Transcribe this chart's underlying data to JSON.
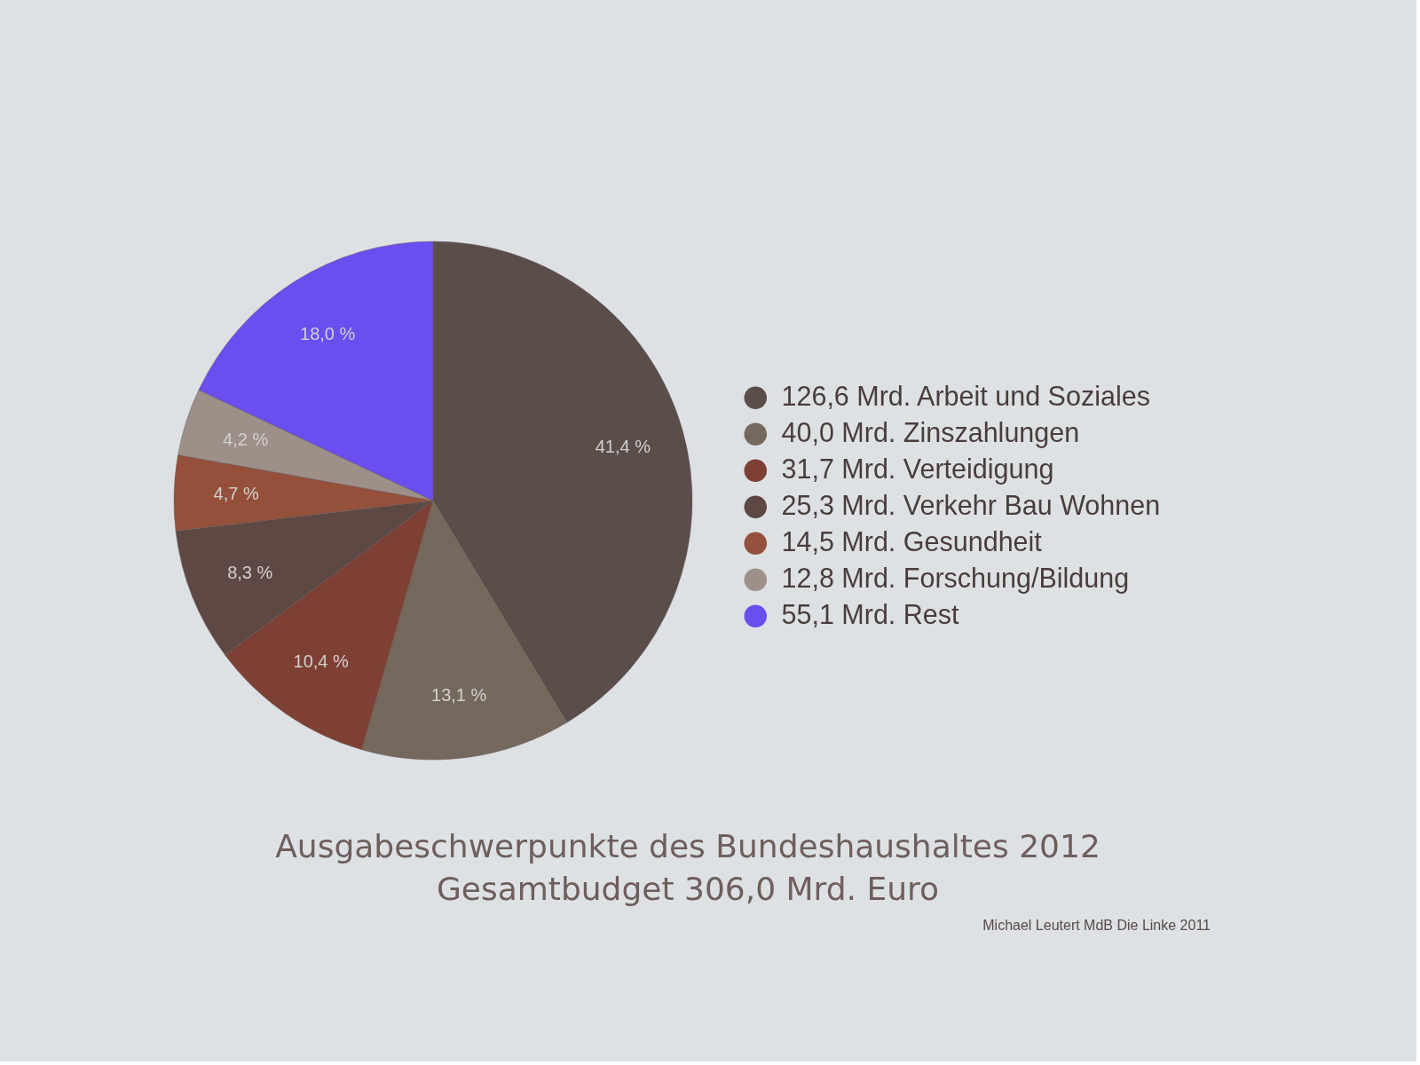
{
  "chart_data": {
    "type": "pie",
    "title": "Ausgabeschwerpunkte des Bundeshaushaltes 2012",
    "subtitle": "Gesamtbudget 306,0 Mrd. Euro",
    "categories": [
      "126,6 Mrd. Arbeit und Soziales",
      "40,0 Mrd. Zinszahlungen",
      "31,7 Mrd. Verteidigung",
      "25,3 Mrd. Verkehr Bau Wohnen",
      "14,5 Mrd. Gesundheit",
      "12,8 Mrd. Forschung/Bildung",
      "55,1 Mrd. Rest"
    ],
    "values": [
      41.4,
      13.1,
      10.4,
      8.3,
      4.7,
      4.2,
      18.0
    ],
    "colors": [
      "#5a4d4a",
      "#75685c",
      "#7e4034",
      "#5e4844",
      "#94503a",
      "#9e9088",
      "#6a4ef0"
    ],
    "value_labels": [
      "41,4 %",
      "13,1 %",
      "10,4 %",
      "8,3 %",
      "4,7 %",
      "4,2 %",
      "18,0 %"
    ],
    "legend": "right",
    "annotations": [
      "Michael Leutert MdB Die Linke 2011"
    ]
  }
}
